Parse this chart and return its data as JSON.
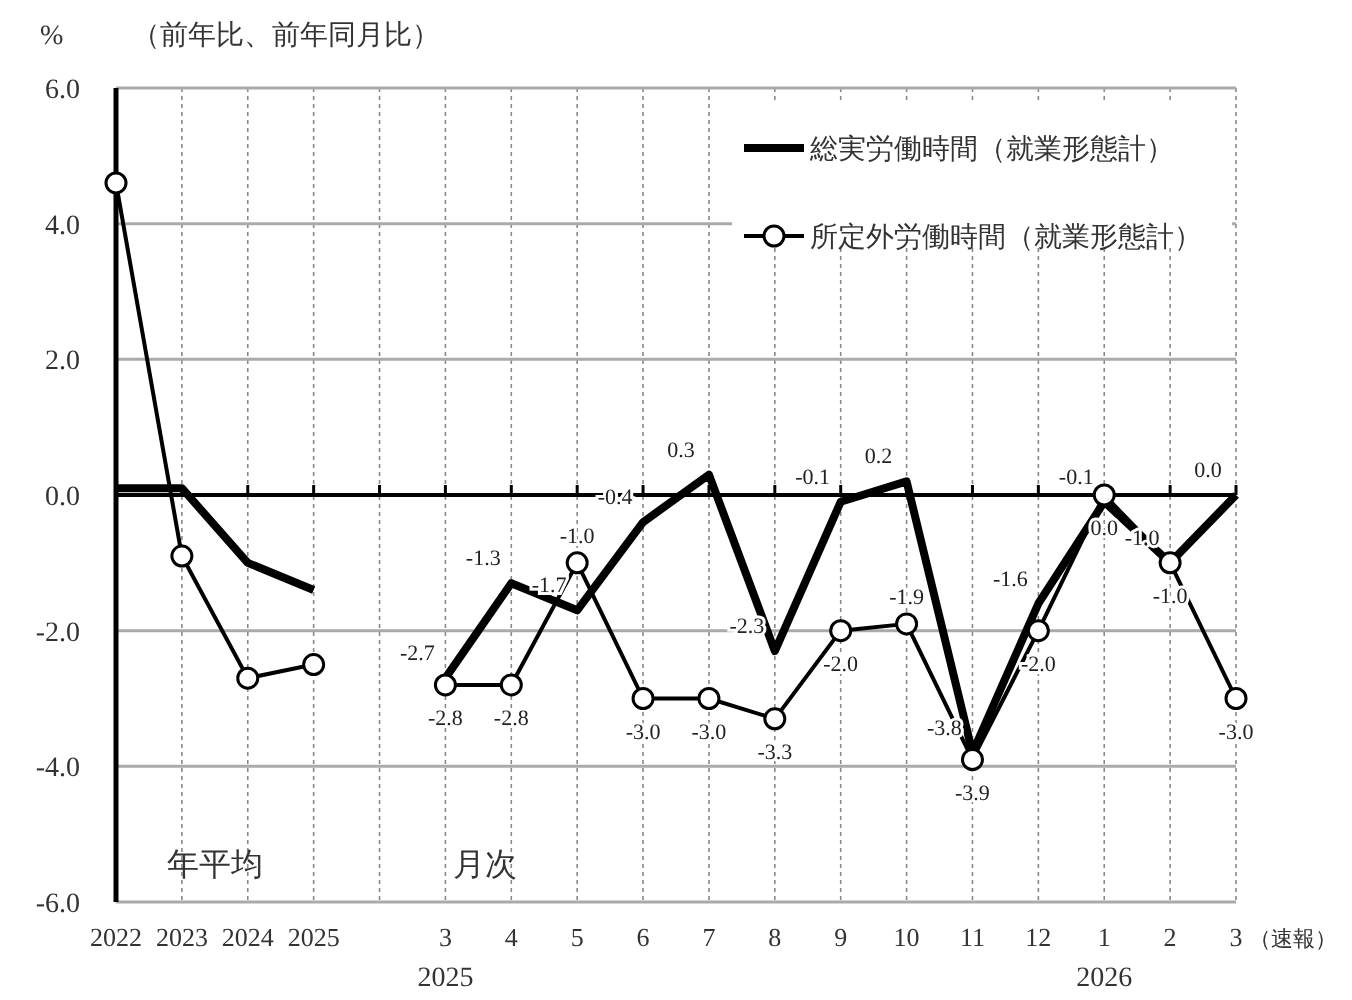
{
  "chart_data": {
    "type": "line",
    "ylabel": "%",
    "subtitle": "（前年比、前年同月比）",
    "categories": [
      "2022",
      "2023",
      "2024",
      "2025",
      null,
      "3",
      "4",
      "5",
      "6",
      "7",
      "8",
      "9",
      "10",
      "11",
      "12",
      "1",
      "2",
      "3"
    ],
    "series": [
      {
        "name": "総実労働時間（就業形態計）",
        "color": "#000000",
        "marker": "none",
        "values": [
          0.1,
          0.1,
          -1.0,
          -1.4,
          null,
          -2.7,
          -1.3,
          -1.7,
          -0.4,
          0.3,
          -2.3,
          -0.1,
          0.2,
          -3.8,
          -1.6,
          -0.1,
          -1.0,
          0.0
        ],
        "value_labels": [
          null,
          null,
          null,
          null,
          null,
          "-2.7",
          "-1.3",
          "-1.7",
          "-0.4",
          "0.3",
          "-2.3",
          "-0.1",
          "0.2",
          "-3.8",
          "-1.6",
          "-0.1",
          "-1.0",
          "0.0"
        ]
      },
      {
        "name": "所定外労働時間（就業形態計）",
        "color": "#000000",
        "marker": "circle",
        "values": [
          4.6,
          -0.9,
          -2.7,
          -2.5,
          null,
          -2.8,
          -2.8,
          -1.0,
          -3.0,
          -3.0,
          -3.3,
          -2.0,
          -1.9,
          -3.9,
          -2.0,
          0.0,
          -1.0,
          -3.0
        ],
        "value_labels": [
          null,
          null,
          null,
          null,
          null,
          "-2.8",
          "-2.8",
          "-1.0",
          "-3.0",
          "-3.0",
          "-3.3",
          "-2.0",
          "-1.9",
          "-3.9",
          "-2.0",
          "0.0",
          "-1.0",
          "-3.0"
        ]
      }
    ],
    "ylim": [
      -6,
      6
    ],
    "yticks": [
      {
        "value": -6,
        "label": "-6.0"
      },
      {
        "value": -4,
        "label": "-4.0"
      },
      {
        "value": -2,
        "label": "-2.0"
      },
      {
        "value": 0,
        "label": "0.0"
      },
      {
        "value": 2,
        "label": "2.0"
      },
      {
        "value": 4,
        "label": "4.0"
      },
      {
        "value": 6,
        "label": "6.0"
      }
    ],
    "grid": true,
    "legend": "top right",
    "annotations": [
      "年平均",
      "月次",
      "2025",
      "2026",
      "（速報）"
    ]
  }
}
